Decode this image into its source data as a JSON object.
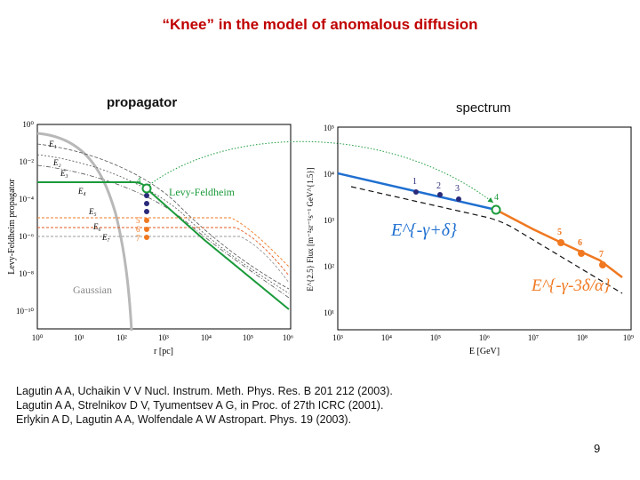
{
  "slide": {
    "title": "“Knee” in the model of anomalous diffusion",
    "propagator_label": "propagator",
    "spectrum_label": "spectrum",
    "references": [
      "Lagutin A A, Uchaikin V V Nucl. Instrum. Meth. Phys. Res. B 201 212 (2003).",
      "Lagutin A A, Strelnikov D V, Tyumentsev A G, in Proc. of 27th ICRC (2001).",
      "Erlykin A D, Lagutin A A, Wolfendale A W Astropart. Phys. 19 (2003)."
    ],
    "page_number": "9"
  },
  "chart_data": [
    {
      "type": "line",
      "ylabel": "Levy-Feldheim propagator",
      "xlabel": "r [pc]",
      "x_scale": "log",
      "y_scale": "log",
      "xlim": [
        1,
        1000000
      ],
      "ylim": [
        1e-11,
        1
      ],
      "x_ticks": [
        "10⁰",
        "10¹",
        "10²",
        "10³",
        "10⁴",
        "10⁵",
        "10⁶"
      ],
      "y_ticks": [
        "10⁰",
        "10⁻²",
        "10⁻⁴",
        "10⁻⁶",
        "10⁻⁸",
        "10⁻¹⁰"
      ],
      "annotations": {
        "curve_labels": [
          "E₁",
          "E₂",
          "E₃",
          "E₄",
          "E₅",
          "E₆",
          "E₇"
        ],
        "levy_label": "Levy-Feldheim",
        "gaussian_label": "Gaussian",
        "points": [
          "4",
          "5",
          "6",
          "7"
        ]
      },
      "series": [
        {
          "name": "Levy-Feldheim",
          "color": "#1a9a3a",
          "x": [
            1,
            100,
            200,
            300,
            1000,
            10000,
            100000,
            1000000
          ],
          "y": [
            0.00025,
            0.00025,
            0.00024,
            0.00018,
            2.5e-05,
            4e-07,
            1.2e-08,
            3e-10
          ]
        },
        {
          "name": "Gaussian",
          "color": "#b0b0b0",
          "x": [
            1,
            10,
            30,
            60,
            100,
            150,
            250
          ],
          "y": [
            0.5,
            0.4,
            0.08,
            0.002,
            1e-06,
            1e-09,
            1e-11
          ]
        }
      ]
    },
    {
      "type": "line",
      "ylabel": "E^{2.5} Flux [m⁻²sr⁻¹s⁻¹ GeV^{1.5}]",
      "xlabel": "E [GeV]",
      "x_scale": "log",
      "y_scale": "log",
      "xlim": [
        1000,
        1000000000
      ],
      "ylim": [
        10,
        100000
      ],
      "x_ticks": [
        "10³",
        "10⁴",
        "10⁵",
        "10⁶",
        "10⁷",
        "10⁸",
        "10⁹"
      ],
      "y_ticks": [
        "10⁵",
        "10⁴",
        "10³",
        "10²",
        "10¹"
      ],
      "annotations": {
        "power_law_low": "E^{-γ+δ}",
        "power_law_high": "E^{-γ-3δ/α}"
      },
      "series": [
        {
          "name": "1",
          "color": "#2a2a7a",
          "points": [
            [
              60000,
              1800
            ]
          ]
        },
        {
          "name": "2",
          "color": "#2a2a7a",
          "points": [
            [
              160000,
              1500
            ]
          ]
        },
        {
          "name": "3",
          "color": "#2a2a7a",
          "points": [
            [
              400000,
              1300
            ]
          ]
        },
        {
          "name": "4",
          "color": "#1a9a3a",
          "points": [
            [
              1500000,
              1000
            ]
          ]
        },
        {
          "name": "5",
          "color": "#f07820",
          "points": [
            [
              15000000,
              270
            ]
          ]
        },
        {
          "name": "6",
          "color": "#f07820",
          "points": [
            [
              50000000,
              140
            ]
          ]
        },
        {
          "name": "7",
          "color": "#f07820",
          "points": [
            [
              150000000,
              80
            ]
          ]
        }
      ]
    }
  ],
  "colors": {
    "title": "#c00000",
    "blue": "#1f6fd0",
    "orange": "#f07820",
    "green": "#1a9a3a",
    "navy": "#2a2a7a"
  }
}
